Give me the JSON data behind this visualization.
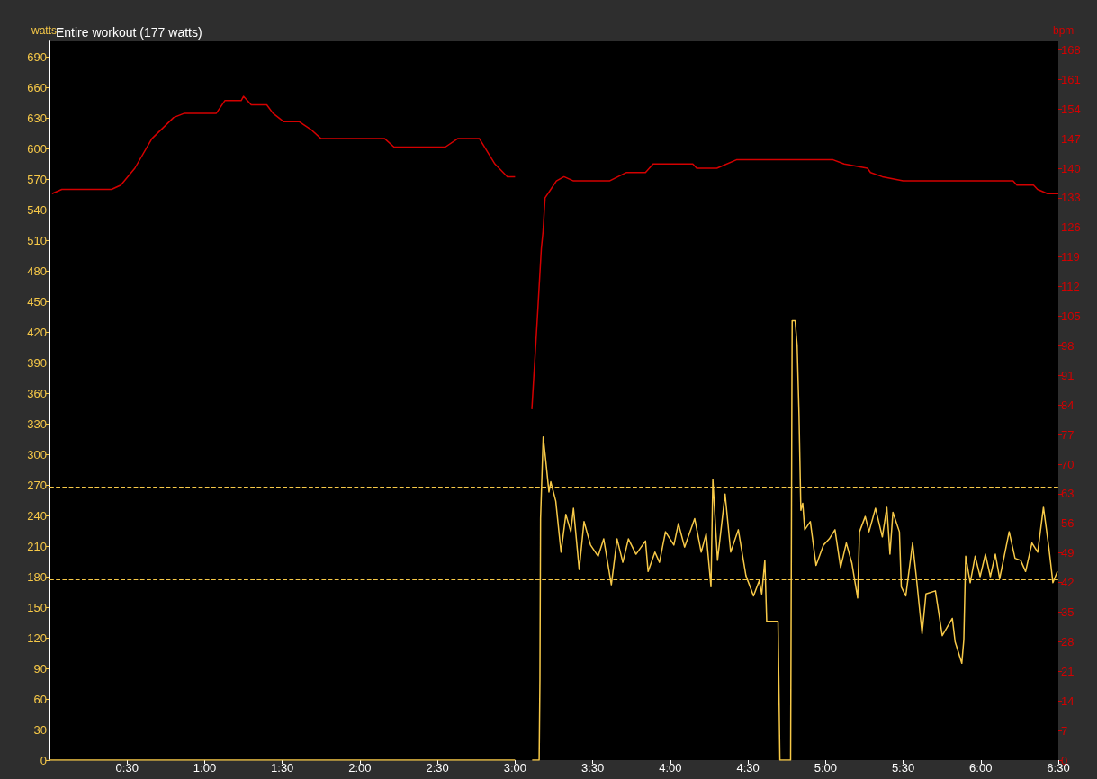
{
  "chart_data": {
    "type": "line",
    "title": "Entire workout (177 watts)",
    "ylabel": "watts",
    "y2label": "bpm",
    "xlim": [
      0,
      6.5
    ],
    "xticks": [
      {
        "value": 0.5,
        "label": "0:30"
      },
      {
        "value": 1,
        "label": "1:00"
      },
      {
        "value": 1.5,
        "label": "1:30"
      },
      {
        "value": 2,
        "label": "2:00"
      },
      {
        "value": 2.5,
        "label": "2:30"
      },
      {
        "value": 3,
        "label": "3:00"
      },
      {
        "value": 3.5,
        "label": "3:30"
      },
      {
        "value": 4,
        "label": "4:00"
      },
      {
        "value": 4.5,
        "label": "4:30"
      },
      {
        "value": 5,
        "label": "5:00"
      },
      {
        "value": 5.5,
        "label": "5:30"
      },
      {
        "value": 6,
        "label": "6:00"
      },
      {
        "value": 6.5,
        "label": "6:30"
      }
    ],
    "ylim": [
      0,
      705
    ],
    "yticks": [
      0,
      30,
      60,
      90,
      120,
      150,
      180,
      210,
      240,
      270,
      300,
      330,
      360,
      390,
      420,
      450,
      480,
      510,
      540,
      570,
      600,
      630,
      660,
      690
    ],
    "y2lim": [
      0,
      170
    ],
    "y2ticks": [
      0,
      7,
      14,
      21,
      28,
      35,
      42,
      49,
      56,
      63,
      70,
      77,
      84,
      91,
      98,
      105,
      112,
      119,
      126,
      133,
      140,
      147,
      154,
      161,
      168
    ],
    "grid": false,
    "series": [
      {
        "color": "#d40000",
        "axis": "y2",
        "x": [
          0.016,
          0.08,
          0.4,
          0.46,
          0.55,
          0.66,
          0.8,
          0.87,
          1.075,
          1.13,
          1.235,
          1.25,
          1.3,
          1.4,
          1.44,
          1.51,
          1.61,
          1.69,
          1.75,
          2.16,
          2.22,
          2.55,
          2.63,
          2.77,
          2.87,
          2.95,
          3.0,
          3.05,
          3.108,
          3.144,
          3.169,
          3.18,
          3.193,
          3.23,
          3.266,
          3.315,
          3.376,
          3.608,
          3.718,
          3.84,
          3.889,
          3.974,
          4.145,
          4.17,
          4.3,
          4.426,
          5.049,
          5.12,
          5.27,
          5.29,
          5.366,
          5.5,
          6.208,
          6.233,
          6.34,
          6.366,
          6.43,
          6.5
        ],
        "values": [
          134,
          135,
          135,
          136,
          140,
          147,
          152,
          153,
          153,
          156,
          156,
          157,
          155,
          155,
          153,
          151,
          151,
          149,
          147,
          147,
          145,
          145,
          147,
          147,
          141,
          138,
          138,
          null,
          83,
          105,
          121,
          125,
          133,
          135,
          137,
          138,
          137,
          137,
          139,
          139,
          141,
          141,
          141,
          140,
          140,
          142,
          142,
          141,
          140,
          139,
          138,
          137,
          137,
          136,
          136,
          135,
          134,
          134
        ]
      },
      {
        "color": "#f7c948",
        "x": [
          0,
          3.0,
          3.05,
          3.11,
          3.155,
          3.16,
          3.164,
          3.181,
          3.198,
          3.218,
          3.23,
          3.262,
          3.296,
          3.327,
          3.359,
          3.376,
          3.413,
          3.444,
          3.486,
          3.535,
          3.571,
          3.62,
          3.657,
          3.694,
          3.73,
          3.779,
          3.84,
          3.857,
          3.901,
          3.93,
          3.969,
          4.023,
          4.052,
          4.092,
          4.157,
          4.199,
          4.231,
          4.262,
          4.274,
          4.304,
          4.353,
          4.389,
          4.438,
          4.487,
          4.536,
          4.573,
          4.589,
          4.609,
          4.621,
          4.694,
          4.7,
          4.706,
          4.775,
          4.785,
          4.804,
          4.817,
          4.829,
          4.841,
          4.853,
          4.866,
          4.902,
          4.939,
          4.987,
          5.024,
          5.061,
          5.097,
          5.134,
          5.17,
          5.207,
          5.219,
          5.256,
          5.28,
          5.322,
          5.366,
          5.395,
          5.415,
          5.434,
          5.476,
          5.488,
          5.517,
          5.561,
          5.586,
          5.622,
          5.647,
          5.708,
          5.752,
          5.817,
          5.835,
          5.878,
          5.891,
          5.903,
          5.932,
          5.964,
          5.996,
          6.03,
          6.062,
          6.094,
          6.122,
          6.183,
          6.221,
          6.257,
          6.289,
          6.33,
          6.367,
          6.404,
          6.44,
          6.465,
          6.494
        ],
        "values": [
          0,
          0,
          null,
          0,
          0,
          79,
          237,
          317,
          293,
          263,
          273,
          254,
          204,
          241,
          224,
          247,
          187,
          234,
          211,
          200,
          217,
          172,
          217,
          194,
          217,
          202,
          215,
          185,
          204,
          194,
          224,
          211,
          232,
          209,
          237,
          204,
          222,
          170,
          275,
          196,
          261,
          204,
          226,
          181,
          161,
          176,
          163,
          196,
          136,
          136,
          68,
          0,
          0,
          431,
          431,
          407,
          340,
          245,
          252,
          226,
          234,
          191,
          211,
          217,
          226,
          189,
          213,
          193,
          159,
          224,
          239,
          224,
          247,
          219,
          248,
          202,
          243,
          224,
          170,
          161,
          213,
          178,
          124,
          163,
          166,
          122,
          139,
          116,
          95,
          118,
          200,
          174,
          200,
          180,
          202,
          180,
          202,
          178,
          224,
          198,
          196,
          185,
          213,
          204,
          248,
          207,
          174,
          185
        ]
      }
    ],
    "ref_lines": [
      {
        "axis": "y2",
        "value": 126,
        "color": "#d40000",
        "line_style": "dashed"
      },
      {
        "axis": "y",
        "value": 268,
        "color": "#f7c948",
        "line_style": "dashed"
      },
      {
        "axis": "y",
        "value": 177,
        "color": "#f7c948",
        "line_style": "dashed"
      }
    ]
  }
}
